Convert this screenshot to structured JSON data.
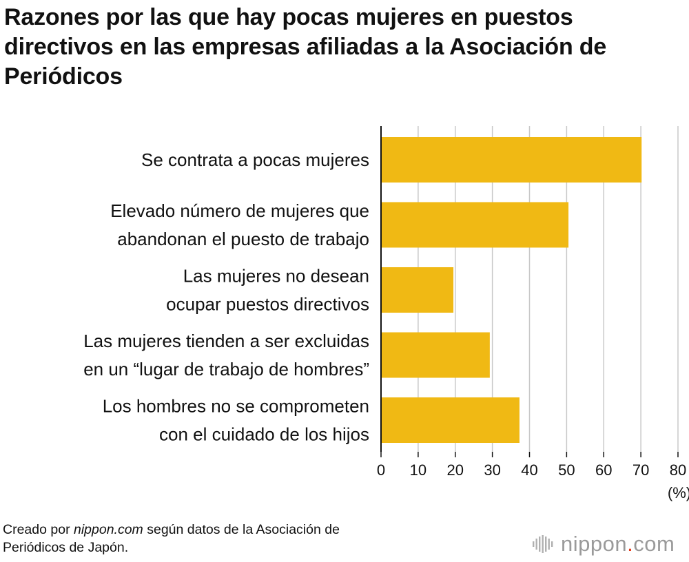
{
  "title": "Razones por las que hay pocas mujeres en puestos directivos en las empresas afiliadas a la Asociación de Periódicos",
  "source": {
    "prefix": "Creado por ",
    "italic": "nippon.com",
    "suffix_line1": " según datos de la Asociación de",
    "line2": "Periódicos de Japón."
  },
  "logo": {
    "name": "nippon",
    "dot": ".",
    "domain": "com"
  },
  "colors": {
    "bar": "#f0b914",
    "grid": "#c8c8c8",
    "axis": "#111111"
  },
  "chart_data": {
    "type": "bar",
    "orientation": "horizontal",
    "categories": [
      [
        "Se contrata a pocas mujeres"
      ],
      [
        "Elevado número de mujeres que",
        "abandonan el puesto de trabajo"
      ],
      [
        "Las mujeres no desean",
        "ocupar puestos directivos"
      ],
      [
        "Las mujeres tienden a ser excluidas",
        "en un “lugar de trabajo de hombres”"
      ],
      [
        "Los hombres no se comprometen",
        "con el cuidado de los hijos"
      ]
    ],
    "values": [
      70.2,
      50.5,
      19.5,
      29.3,
      37.3
    ],
    "xlim": [
      0,
      80
    ],
    "xticks": [
      "0",
      "10",
      "20",
      "30",
      "40",
      "50",
      "60",
      "70",
      "80"
    ],
    "x_unit": "(%)",
    "grid": true
  }
}
